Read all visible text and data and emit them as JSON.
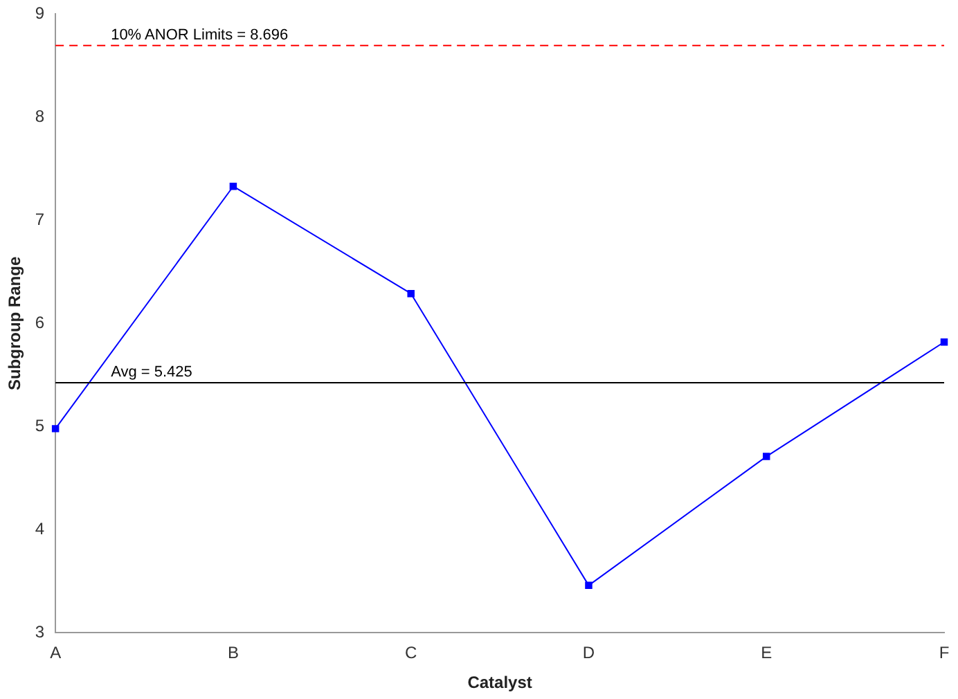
{
  "chart_data": {
    "type": "line",
    "xlabel": "Catalyst",
    "ylabel": "Subgroup Range",
    "categories": [
      "A",
      "B",
      "C",
      "D",
      "E",
      "F"
    ],
    "series": [
      {
        "color": "#0000ff",
        "values": [
          4.98,
          7.33,
          6.29,
          3.46,
          4.71,
          5.82
        ]
      }
    ],
    "ylim": [
      3,
      9
    ],
    "yticks": [
      3,
      4,
      5,
      6,
      7,
      8,
      9
    ],
    "grid": false,
    "legend": false,
    "marker": "square",
    "line_style": "solid",
    "ref_lines": [
      {
        "axis": "y",
        "value": 8.696,
        "label": "10% ANOR Limits = 8.696",
        "color": "#ff0000",
        "line_style": "dashed"
      },
      {
        "axis": "y",
        "value": 5.425,
        "label": "Avg = 5.425",
        "color": "#000000",
        "line_style": "solid"
      }
    ]
  }
}
